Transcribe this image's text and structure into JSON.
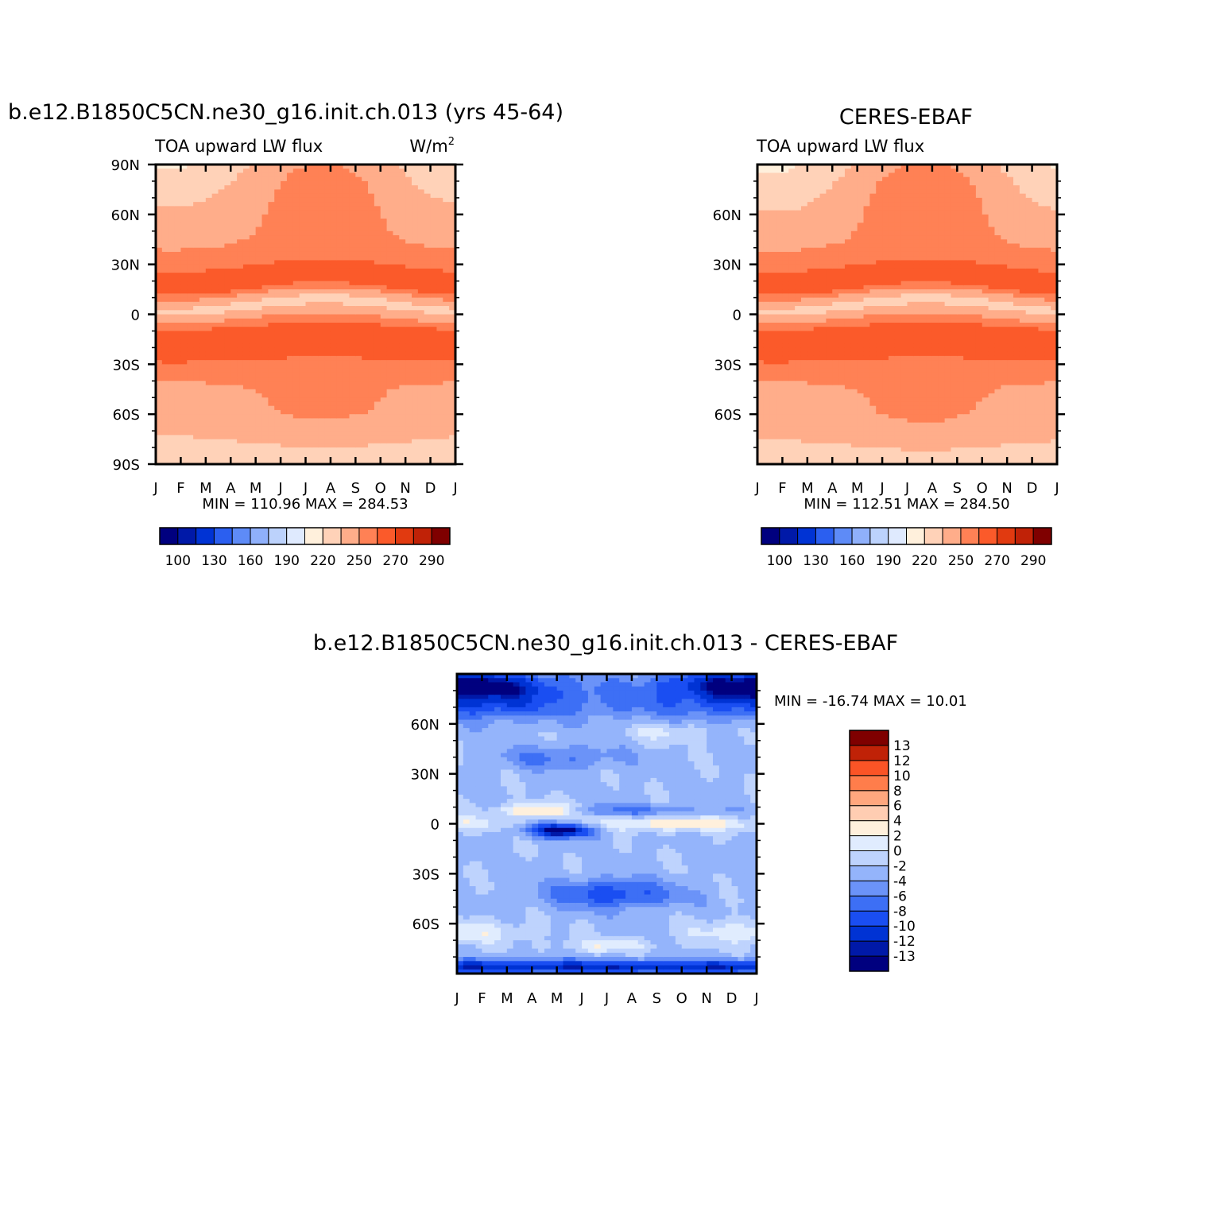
{
  "chart_data": [
    {
      "type": "heatmap",
      "id": "model",
      "title": "b.e12.B1850C5CN.ne30_g16.init.ch.013 (yrs 45-64)",
      "subtitle": "TOA upward LW flux",
      "units_base": "W/m",
      "units_sup": "2",
      "x_tick_labels": [
        "J",
        "F",
        "M",
        "A",
        "M",
        "J",
        "J",
        "A",
        "S",
        "O",
        "N",
        "D",
        "J"
      ],
      "y_tick_labels": [
        "90N",
        "60N",
        "30N",
        "0",
        "30S",
        "60S",
        "90S"
      ],
      "y_tick_values": [
        90,
        60,
        30,
        0,
        -30,
        -60,
        -90
      ],
      "xlim": [
        0,
        12
      ],
      "ylim": [
        -90,
        90
      ],
      "stats": "MIN =  110.96  MAX =  284.53",
      "colorbar": {
        "orientation": "horizontal",
        "colors": [
          "#00007f",
          "#0019a8",
          "#0033d4",
          "#2b5ff0",
          "#5e8bf7",
          "#8fb0fb",
          "#bcd2fc",
          "#dfeafe",
          "#fff0dc",
          "#ffd2b8",
          "#ffad8a",
          "#ff8155",
          "#fb5a2a",
          "#e13a10",
          "#c02207",
          "#7f0000"
        ],
        "labels": [
          "100",
          "130",
          "160",
          "190",
          "220",
          "250",
          "270",
          "290"
        ]
      }
    },
    {
      "type": "heatmap",
      "id": "obs",
      "title": "CERES-EBAF",
      "subtitle": "TOA upward LW flux",
      "x_tick_labels": [
        "J",
        "F",
        "M",
        "A",
        "M",
        "J",
        "J",
        "A",
        "S",
        "O",
        "N",
        "D",
        "J"
      ],
      "y_tick_labels": [
        "60N",
        "30N",
        "0",
        "30S",
        "60S"
      ],
      "y_tick_values": [
        60,
        30,
        0,
        -30,
        -60
      ],
      "xlim": [
        0,
        12
      ],
      "ylim": [
        -90,
        90
      ],
      "stats": "MIN =  112.51  MAX =  284.50",
      "colorbar": {
        "orientation": "horizontal",
        "colors": [
          "#00007f",
          "#0019a8",
          "#0033d4",
          "#2b5ff0",
          "#5e8bf7",
          "#8fb0fb",
          "#bcd2fc",
          "#dfeafe",
          "#fff0dc",
          "#ffd2b8",
          "#ffad8a",
          "#ff8155",
          "#fb5a2a",
          "#e13a10",
          "#c02207",
          "#7f0000"
        ],
        "labels": [
          "100",
          "130",
          "160",
          "190",
          "220",
          "250",
          "270",
          "290"
        ]
      }
    },
    {
      "type": "heatmap",
      "id": "diff",
      "title": "b.e12.B1850C5CN.ne30_g16.init.ch.013 - CERES-EBAF",
      "x_tick_labels": [
        "J",
        "F",
        "M",
        "A",
        "M",
        "J",
        "J",
        "A",
        "S",
        "O",
        "N",
        "D",
        "J"
      ],
      "y_tick_labels": [
        "60N",
        "30N",
        "0",
        "30S",
        "60S"
      ],
      "y_tick_values": [
        60,
        30,
        0,
        -30,
        -60
      ],
      "xlim": [
        0,
        12
      ],
      "ylim": [
        -90,
        90
      ],
      "stats": "MIN = -16.74  MAX =   10.01",
      "colorbar": {
        "orientation": "vertical",
        "colors": [
          "#00007f",
          "#0019a8",
          "#0033d4",
          "#1a4ef2",
          "#3d6ff5",
          "#6b93f8",
          "#94b4fb",
          "#bed3fd",
          "#e0ecfe",
          "#fff0dc",
          "#ffcdb2",
          "#ffa77e",
          "#ff7d4b",
          "#fb5426",
          "#c02207",
          "#7f0000"
        ],
        "labels": [
          "13",
          "12",
          "10",
          "8",
          "6",
          "4",
          "2",
          "0",
          "-2",
          "-4",
          "-6",
          "-8",
          "-10",
          "-12",
          "-13"
        ]
      }
    }
  ]
}
